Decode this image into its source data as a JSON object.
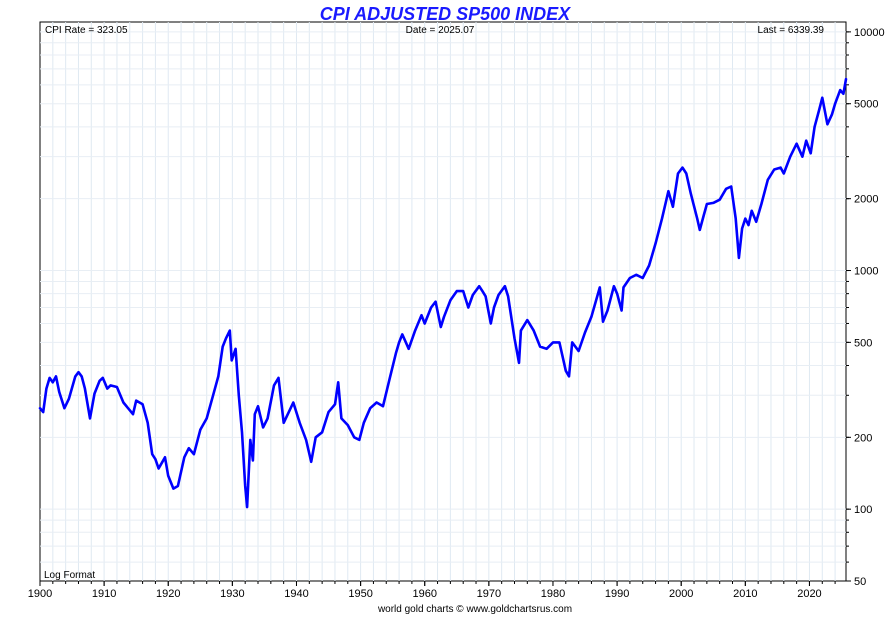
{
  "chart_data": {
    "type": "line",
    "title": "CPI ADJUSTED SP500 INDEX",
    "info": {
      "cpi_rate": "CPI Rate = 323.05",
      "date": "Date = 2025.07",
      "last": "Last = 6339.39"
    },
    "scale_note": "Log Format",
    "footer": "world gold charts © www.goldchartsrus.com",
    "log_scale": true,
    "grid": true,
    "xlim": [
      1900,
      2025.7
    ],
    "ylim": [
      50,
      11000
    ],
    "x_ticks": [
      1900,
      1910,
      1920,
      1930,
      1940,
      1950,
      1960,
      1970,
      1980,
      1990,
      2000,
      2010,
      2020
    ],
    "y_ticks": [
      50,
      100,
      200,
      500,
      1000,
      2000,
      5000,
      10000
    ],
    "series": [
      {
        "color": "#0000ff",
        "points": [
          [
            1900,
            265
          ],
          [
            1900.5,
            255
          ],
          [
            1901,
            320
          ],
          [
            1901.5,
            355
          ],
          [
            1902,
            340
          ],
          [
            1902.5,
            360
          ],
          [
            1903,
            310
          ],
          [
            1903.8,
            265
          ],
          [
            1904.5,
            290
          ],
          [
            1905.5,
            360
          ],
          [
            1906,
            375
          ],
          [
            1906.5,
            360
          ],
          [
            1907,
            320
          ],
          [
            1907.8,
            240
          ],
          [
            1908.5,
            305
          ],
          [
            1909.3,
            345
          ],
          [
            1909.8,
            355
          ],
          [
            1910.5,
            320
          ],
          [
            1911,
            330
          ],
          [
            1912,
            325
          ],
          [
            1913,
            280
          ],
          [
            1914.5,
            250
          ],
          [
            1915,
            285
          ],
          [
            1916,
            275
          ],
          [
            1916.8,
            230
          ],
          [
            1917.5,
            170
          ],
          [
            1918,
            162
          ],
          [
            1918.5,
            148
          ],
          [
            1919.5,
            165
          ],
          [
            1920,
            138
          ],
          [
            1920.8,
            122
          ],
          [
            1921.5,
            125
          ],
          [
            1922.5,
            165
          ],
          [
            1923.2,
            180
          ],
          [
            1924,
            170
          ],
          [
            1925,
            215
          ],
          [
            1926,
            240
          ],
          [
            1927,
            300
          ],
          [
            1927.8,
            360
          ],
          [
            1928.5,
            480
          ],
          [
            1929,
            520
          ],
          [
            1929.6,
            560
          ],
          [
            1929.9,
            420
          ],
          [
            1930.5,
            470
          ],
          [
            1931,
            300
          ],
          [
            1931.5,
            210
          ],
          [
            1932,
            125
          ],
          [
            1932.3,
            102
          ],
          [
            1932.8,
            195
          ],
          [
            1933.2,
            160
          ],
          [
            1933.5,
            250
          ],
          [
            1934,
            270
          ],
          [
            1934.8,
            220
          ],
          [
            1935.5,
            240
          ],
          [
            1936.5,
            330
          ],
          [
            1937.2,
            355
          ],
          [
            1938,
            230
          ],
          [
            1938.8,
            255
          ],
          [
            1939.5,
            280
          ],
          [
            1940.5,
            230
          ],
          [
            1941.5,
            195
          ],
          [
            1942.3,
            158
          ],
          [
            1943,
            200
          ],
          [
            1944,
            210
          ],
          [
            1945,
            255
          ],
          [
            1946,
            275
          ],
          [
            1946.5,
            340
          ],
          [
            1947,
            240
          ],
          [
            1948,
            225
          ],
          [
            1949,
            200
          ],
          [
            1949.8,
            195
          ],
          [
            1950.5,
            230
          ],
          [
            1951.5,
            265
          ],
          [
            1952.5,
            280
          ],
          [
            1953.5,
            270
          ],
          [
            1954.5,
            350
          ],
          [
            1955.5,
            450
          ],
          [
            1956,
            500
          ],
          [
            1956.5,
            540
          ],
          [
            1957.5,
            470
          ],
          [
            1958.5,
            560
          ],
          [
            1959.5,
            650
          ],
          [
            1960,
            600
          ],
          [
            1961,
            700
          ],
          [
            1961.7,
            740
          ],
          [
            1962.5,
            580
          ],
          [
            1963,
            640
          ],
          [
            1964,
            750
          ],
          [
            1965,
            820
          ],
          [
            1966,
            820
          ],
          [
            1966.8,
            700
          ],
          [
            1967.5,
            790
          ],
          [
            1968.5,
            860
          ],
          [
            1969,
            820
          ],
          [
            1969.5,
            780
          ],
          [
            1970.3,
            600
          ],
          [
            1970.8,
            700
          ],
          [
            1971.5,
            790
          ],
          [
            1972.5,
            860
          ],
          [
            1973,
            780
          ],
          [
            1974,
            520
          ],
          [
            1974.7,
            410
          ],
          [
            1975,
            560
          ],
          [
            1976,
            620
          ],
          [
            1977,
            560
          ],
          [
            1978,
            480
          ],
          [
            1979,
            470
          ],
          [
            1980,
            500
          ],
          [
            1981,
            500
          ],
          [
            1982,
            380
          ],
          [
            1982.5,
            360
          ],
          [
            1983,
            500
          ],
          [
            1984,
            460
          ],
          [
            1985,
            550
          ],
          [
            1986,
            640
          ],
          [
            1987.3,
            850
          ],
          [
            1987.8,
            610
          ],
          [
            1988.5,
            680
          ],
          [
            1989.5,
            860
          ],
          [
            1990,
            800
          ],
          [
            1990.7,
            680
          ],
          [
            1991,
            850
          ],
          [
            1992,
            930
          ],
          [
            1993,
            960
          ],
          [
            1994,
            930
          ],
          [
            1995,
            1050
          ],
          [
            1996,
            1300
          ],
          [
            1997,
            1650
          ],
          [
            1998,
            2150
          ],
          [
            1998.7,
            1850
          ],
          [
            1999.5,
            2550
          ],
          [
            2000.2,
            2700
          ],
          [
            2000.8,
            2550
          ],
          [
            2001.5,
            2100
          ],
          [
            2002.5,
            1650
          ],
          [
            2002.9,
            1480
          ],
          [
            2003.5,
            1700
          ],
          [
            2004,
            1900
          ],
          [
            2005,
            1920
          ],
          [
            2006,
            1980
          ],
          [
            2007,
            2200
          ],
          [
            2007.8,
            2250
          ],
          [
            2008.5,
            1650
          ],
          [
            2009,
            1130
          ],
          [
            2009.5,
            1500
          ],
          [
            2010,
            1650
          ],
          [
            2010.5,
            1550
          ],
          [
            2011,
            1780
          ],
          [
            2011.7,
            1600
          ],
          [
            2012.5,
            1900
          ],
          [
            2013.5,
            2400
          ],
          [
            2014.5,
            2650
          ],
          [
            2015.5,
            2700
          ],
          [
            2016,
            2550
          ],
          [
            2017,
            3000
          ],
          [
            2018,
            3400
          ],
          [
            2018.9,
            3000
          ],
          [
            2019.5,
            3500
          ],
          [
            2020.2,
            3100
          ],
          [
            2020.8,
            4000
          ],
          [
            2021.5,
            4700
          ],
          [
            2022,
            5300
          ],
          [
            2022.8,
            4100
          ],
          [
            2023.5,
            4500
          ],
          [
            2024,
            5000
          ],
          [
            2024.8,
            5700
          ],
          [
            2025.3,
            5500
          ],
          [
            2025.7,
            6339
          ]
        ]
      }
    ]
  }
}
